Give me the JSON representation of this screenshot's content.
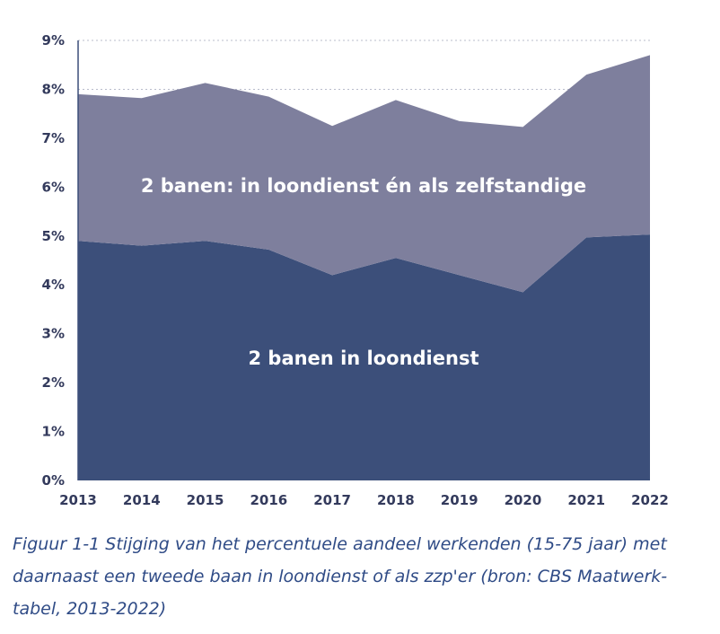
{
  "chart_data": {
    "type": "area",
    "stacked": true,
    "x": [
      "2013",
      "2014",
      "2015",
      "2016",
      "2017",
      "2018",
      "2019",
      "2020",
      "2021",
      "2022"
    ],
    "series": [
      {
        "name": "2 banen in loondienst",
        "values": [
          4.9,
          4.8,
          4.9,
          4.72,
          4.2,
          4.55,
          4.2,
          3.85,
          4.97,
          5.03
        ],
        "color": "#3c4f7a"
      },
      {
        "name": "2 banen: in loondienst én als zelfstandige",
        "values": [
          3.0,
          3.02,
          3.23,
          3.13,
          3.05,
          3.23,
          3.15,
          3.38,
          3.33,
          3.67
        ],
        "color": "#7e7f9d"
      }
    ],
    "ylim": [
      0,
      9
    ],
    "yticks": [
      "0%",
      "1%",
      "2%",
      "3%",
      "4%",
      "5%",
      "6%",
      "7%",
      "8%",
      "9%"
    ],
    "grid": "dotted-horizontal",
    "legend": "inline labels"
  },
  "caption": "Figuur 1-1 Stijging van het percentuele aandeel werkenden (15-75 jaar) met daarnaast een tweede baan in loondienst of als zzp'er (bron: CBS Maatwerk-tabel, 2013-2022)"
}
